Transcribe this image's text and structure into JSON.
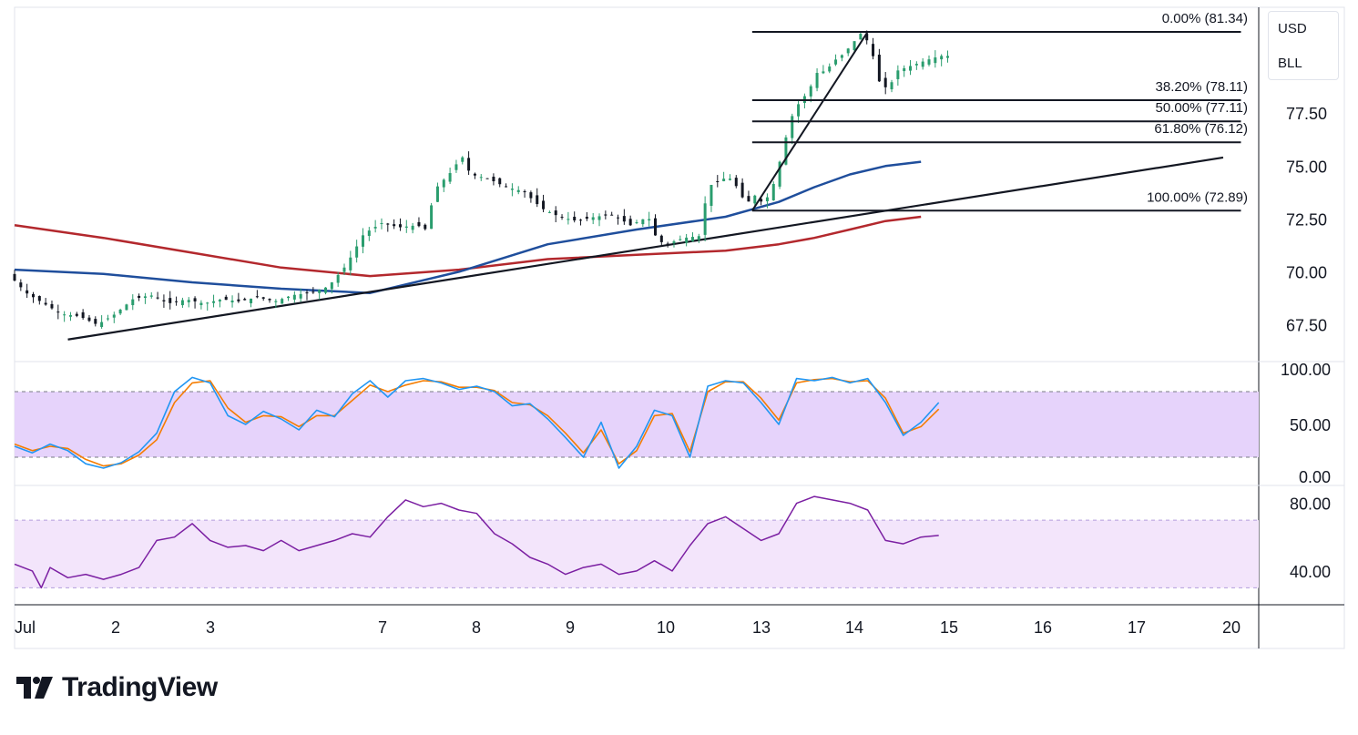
{
  "chart_data": {
    "type": "candlestick",
    "currency_label": "USD",
    "symbol_label": "BLL",
    "x_axis": {
      "tick_labels": [
        "Jul",
        "2",
        "3",
        "7",
        "8",
        "9",
        "10",
        "13",
        "14",
        "15",
        "16",
        "17",
        "20"
      ]
    },
    "price_axis": {
      "range": [
        65.8,
        82.5
      ],
      "tick_values": [
        67.5,
        70.0,
        72.5,
        75.0,
        77.5
      ],
      "tick_labels": [
        "67.50",
        "70.00",
        "72.50",
        "75.00",
        "77.50"
      ]
    },
    "price_path": [
      [
        0,
        69.9
      ],
      [
        10,
        69.0
      ],
      [
        20,
        68.5
      ],
      [
        30,
        68.0
      ],
      [
        40,
        67.9
      ],
      [
        50,
        67.5
      ],
      [
        60,
        68.0
      ],
      [
        70,
        68.7
      ],
      [
        80,
        68.9
      ],
      [
        90,
        68.5
      ],
      [
        100,
        68.7
      ],
      [
        110,
        68.5
      ],
      [
        120,
        68.7
      ],
      [
        130,
        68.6
      ],
      [
        140,
        68.8
      ],
      [
        150,
        68.6
      ],
      [
        160,
        68.9
      ],
      [
        170,
        69.0
      ],
      [
        180,
        69.3
      ],
      [
        190,
        70.3
      ],
      [
        200,
        71.8
      ],
      [
        210,
        72.3
      ],
      [
        220,
        72.1
      ],
      [
        230,
        72.2
      ],
      [
        235,
        72.0
      ],
      [
        240,
        73.9
      ],
      [
        250,
        74.8
      ],
      [
        255,
        75.5
      ],
      [
        260,
        74.6
      ],
      [
        270,
        74.4
      ],
      [
        280,
        74.0
      ],
      [
        290,
        73.8
      ],
      [
        300,
        73.0
      ],
      [
        310,
        72.6
      ],
      [
        320,
        72.4
      ],
      [
        330,
        72.6
      ],
      [
        340,
        72.7
      ],
      [
        350,
        72.2
      ],
      [
        360,
        72.6
      ],
      [
        365,
        71.5
      ],
      [
        370,
        71.3
      ],
      [
        380,
        71.6
      ],
      [
        390,
        71.7
      ],
      [
        393,
        74.0
      ],
      [
        400,
        74.3
      ],
      [
        405,
        74.5
      ],
      [
        410,
        74.0
      ],
      [
        415,
        73.2
      ],
      [
        420,
        73.6
      ],
      [
        425,
        73.2
      ],
      [
        430,
        74.0
      ],
      [
        435,
        75.5
      ],
      [
        440,
        77.2
      ],
      [
        445,
        78.0
      ],
      [
        450,
        78.5
      ],
      [
        455,
        79.4
      ],
      [
        460,
        79.5
      ],
      [
        465,
        80.0
      ],
      [
        470,
        80.3
      ],
      [
        475,
        80.8
      ],
      [
        480,
        81.3
      ],
      [
        485,
        80.7
      ],
      [
        490,
        79.0
      ],
      [
        495,
        78.6
      ],
      [
        500,
        79.5
      ],
      [
        510,
        79.8
      ],
      [
        520,
        80.1
      ],
      [
        525,
        80.2
      ]
    ],
    "ma_fast": {
      "values": [
        [
          0,
          70.1
        ],
        [
          50,
          69.9
        ],
        [
          100,
          69.5
        ],
        [
          150,
          69.2
        ],
        [
          200,
          69.0
        ],
        [
          250,
          70.0
        ],
        [
          300,
          71.3
        ],
        [
          350,
          72.0
        ],
        [
          400,
          72.6
        ],
        [
          430,
          73.3
        ],
        [
          450,
          74.0
        ],
        [
          470,
          74.6
        ],
        [
          490,
          75.0
        ],
        [
          510,
          75.2
        ]
      ]
    },
    "ma_slow": {
      "values": [
        [
          0,
          72.2
        ],
        [
          50,
          71.6
        ],
        [
          100,
          70.9
        ],
        [
          150,
          70.2
        ],
        [
          200,
          69.8
        ],
        [
          250,
          70.1
        ],
        [
          300,
          70.6
        ],
        [
          350,
          70.8
        ],
        [
          400,
          71.0
        ],
        [
          430,
          71.3
        ],
        [
          450,
          71.6
        ],
        [
          470,
          72.0
        ],
        [
          490,
          72.4
        ],
        [
          510,
          72.6
        ]
      ]
    },
    "trendline": {
      "x0": 30,
      "y0": 66.8,
      "x1": 680,
      "y1": 75.4
    },
    "fib_retracement": {
      "x_start": 415,
      "x_end": 690,
      "levels": [
        {
          "ratio": 0.0,
          "price": 81.34,
          "label": "0.00% (81.34)"
        },
        {
          "ratio": 0.382,
          "price": 78.11,
          "label": "38.20% (78.11)"
        },
        {
          "ratio": 0.5,
          "price": 77.11,
          "label": "50.00% (77.11)"
        },
        {
          "ratio": 0.618,
          "price": 76.12,
          "label": "61.80% (76.12)"
        },
        {
          "ratio": 1.0,
          "price": 72.89,
          "label": "100.00% (72.89)"
        }
      ],
      "swing_line": {
        "x0": 415,
        "y0": 72.89,
        "x1": 480,
        "y1": 81.34
      }
    },
    "stochastic": {
      "range": [
        0,
        100
      ],
      "band": [
        20,
        80
      ],
      "tick_labels": [
        "100.00",
        "50.00",
        "0.00"
      ],
      "tick_values": [
        100,
        50,
        0
      ],
      "k": [
        [
          0,
          30
        ],
        [
          10,
          24
        ],
        [
          20,
          32
        ],
        [
          30,
          26
        ],
        [
          40,
          14
        ],
        [
          50,
          10
        ],
        [
          60,
          15
        ],
        [
          70,
          25
        ],
        [
          80,
          42
        ],
        [
          90,
          80
        ],
        [
          100,
          93
        ],
        [
          110,
          88
        ],
        [
          120,
          58
        ],
        [
          130,
          50
        ],
        [
          140,
          62
        ],
        [
          150,
          55
        ],
        [
          160,
          45
        ],
        [
          170,
          63
        ],
        [
          180,
          57
        ],
        [
          190,
          78
        ],
        [
          200,
          90
        ],
        [
          210,
          75
        ],
        [
          220,
          90
        ],
        [
          230,
          92
        ],
        [
          240,
          88
        ],
        [
          250,
          82
        ],
        [
          260,
          85
        ],
        [
          270,
          80
        ],
        [
          280,
          67
        ],
        [
          290,
          69
        ],
        [
          300,
          55
        ],
        [
          310,
          38
        ],
        [
          320,
          20
        ],
        [
          330,
          52
        ],
        [
          340,
          10
        ],
        [
          350,
          30
        ],
        [
          360,
          63
        ],
        [
          370,
          58
        ],
        [
          380,
          20
        ],
        [
          390,
          85
        ],
        [
          400,
          90
        ],
        [
          410,
          88
        ],
        [
          420,
          70
        ],
        [
          430,
          50
        ],
        [
          440,
          92
        ],
        [
          450,
          90
        ],
        [
          460,
          93
        ],
        [
          470,
          88
        ],
        [
          480,
          92
        ],
        [
          490,
          70
        ],
        [
          500,
          40
        ],
        [
          510,
          52
        ],
        [
          520,
          70
        ]
      ],
      "d": [
        [
          0,
          32
        ],
        [
          10,
          26
        ],
        [
          20,
          30
        ],
        [
          30,
          28
        ],
        [
          40,
          18
        ],
        [
          50,
          12
        ],
        [
          60,
          14
        ],
        [
          70,
          22
        ],
        [
          80,
          36
        ],
        [
          90,
          70
        ],
        [
          100,
          88
        ],
        [
          110,
          90
        ],
        [
          120,
          65
        ],
        [
          130,
          52
        ],
        [
          140,
          58
        ],
        [
          150,
          57
        ],
        [
          160,
          48
        ],
        [
          170,
          58
        ],
        [
          180,
          58
        ],
        [
          190,
          72
        ],
        [
          200,
          86
        ],
        [
          210,
          80
        ],
        [
          220,
          86
        ],
        [
          230,
          90
        ],
        [
          240,
          89
        ],
        [
          250,
          84
        ],
        [
          260,
          84
        ],
        [
          270,
          81
        ],
        [
          280,
          70
        ],
        [
          290,
          68
        ],
        [
          300,
          58
        ],
        [
          310,
          42
        ],
        [
          320,
          24
        ],
        [
          330,
          45
        ],
        [
          340,
          14
        ],
        [
          350,
          26
        ],
        [
          360,
          58
        ],
        [
          370,
          60
        ],
        [
          380,
          25
        ],
        [
          390,
          80
        ],
        [
          400,
          89
        ],
        [
          410,
          89
        ],
        [
          420,
          74
        ],
        [
          430,
          54
        ],
        [
          440,
          88
        ],
        [
          450,
          91
        ],
        [
          460,
          92
        ],
        [
          470,
          89
        ],
        [
          480,
          90
        ],
        [
          490,
          74
        ],
        [
          500,
          42
        ],
        [
          510,
          48
        ],
        [
          520,
          64
        ]
      ]
    },
    "rsi": {
      "range": [
        20,
        90
      ],
      "band": [
        30,
        70
      ],
      "tick_labels": [
        "80.00",
        "40.00"
      ],
      "tick_values": [
        80,
        40
      ],
      "values": [
        [
          0,
          44
        ],
        [
          10,
          40
        ],
        [
          15,
          30
        ],
        [
          20,
          42
        ],
        [
          30,
          36
        ],
        [
          40,
          38
        ],
        [
          50,
          35
        ],
        [
          60,
          38
        ],
        [
          70,
          42
        ],
        [
          80,
          58
        ],
        [
          90,
          60
        ],
        [
          100,
          68
        ],
        [
          110,
          58
        ],
        [
          120,
          54
        ],
        [
          130,
          55
        ],
        [
          140,
          52
        ],
        [
          150,
          58
        ],
        [
          160,
          52
        ],
        [
          170,
          55
        ],
        [
          180,
          58
        ],
        [
          190,
          62
        ],
        [
          200,
          60
        ],
        [
          210,
          72
        ],
        [
          220,
          82
        ],
        [
          230,
          78
        ],
        [
          240,
          80
        ],
        [
          250,
          76
        ],
        [
          260,
          74
        ],
        [
          270,
          62
        ],
        [
          280,
          56
        ],
        [
          290,
          48
        ],
        [
          300,
          44
        ],
        [
          310,
          38
        ],
        [
          320,
          42
        ],
        [
          330,
          44
        ],
        [
          340,
          38
        ],
        [
          350,
          40
        ],
        [
          360,
          46
        ],
        [
          370,
          40
        ],
        [
          380,
          55
        ],
        [
          390,
          68
        ],
        [
          400,
          72
        ],
        [
          410,
          65
        ],
        [
          420,
          58
        ],
        [
          430,
          62
        ],
        [
          440,
          80
        ],
        [
          450,
          84
        ],
        [
          460,
          82
        ],
        [
          470,
          80
        ],
        [
          480,
          76
        ],
        [
          490,
          58
        ],
        [
          500,
          56
        ],
        [
          510,
          60
        ],
        [
          520,
          61
        ]
      ]
    },
    "x_scale_note": "",
    "colors": {
      "bull": "#2a9d6e",
      "bear": "#131722",
      "ma_fast": "#1f4e9c",
      "ma_slow": "#b3282d",
      "stoch_k": "#2196f3",
      "stoch_d": "#f57c00",
      "stoch_band": "#e6d3fb",
      "rsi_line": "#7b1fa2",
      "rsi_band": "#f3e5fb",
      "fib": "#131722",
      "trend": "#131722",
      "axis_text": "#131722"
    }
  },
  "branding": {
    "name": "TradingView"
  }
}
